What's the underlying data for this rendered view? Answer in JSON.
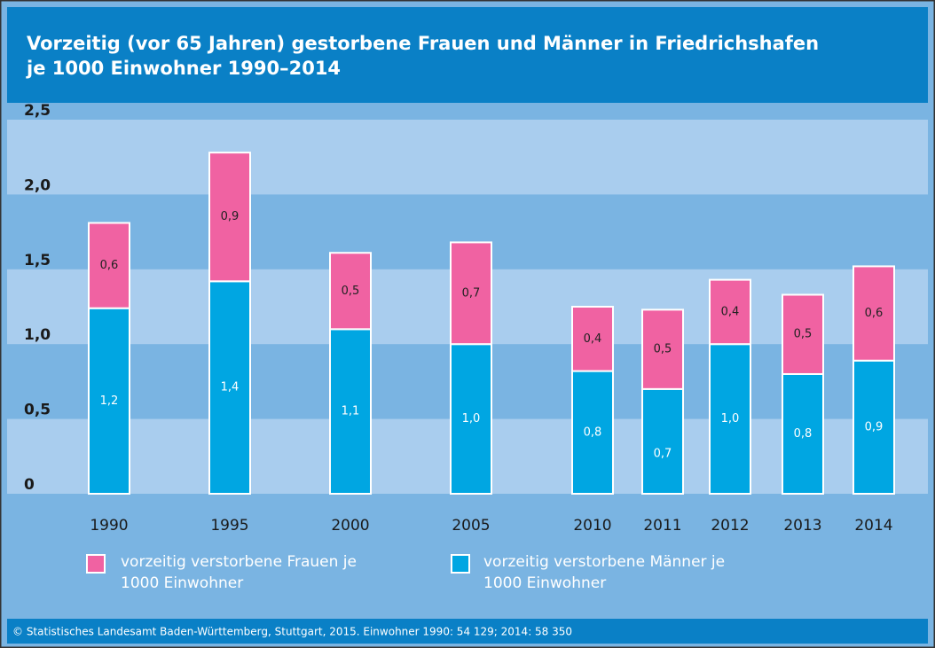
{
  "chart_data": {
    "type": "stacked_bar",
    "title": [
      "Vorzeitig (vor 65 Jahren) gestorbene Frauen und Männer in Friedrichshafen",
      "je 1000 Einwohner 1990–2014"
    ],
    "categories": [
      "1990",
      "1995",
      "2000",
      "2005",
      "2010",
      "2011",
      "2012",
      "2013",
      "2014"
    ],
    "series": [
      {
        "name": "vorzeitig verstorbene Frauen je 1000 Einwohner",
        "color": "#f062a2",
        "values": [
          0.57,
          0.86,
          0.51,
          0.68,
          0.43,
          0.53,
          0.43,
          0.53,
          0.63
        ],
        "value_labels": [
          "0,6",
          "0,9",
          "0,5",
          "0,7",
          "0,4",
          "0,5",
          "0,4",
          "0,5",
          "0,6"
        ]
      },
      {
        "name": "vorzeitig verstorbene Männer je 1000 Einwohner",
        "color": "#00a6e2",
        "values": [
          1.24,
          1.42,
          1.1,
          1.0,
          0.82,
          0.7,
          1.0,
          0.8,
          0.89
        ],
        "value_labels": [
          "1,2",
          "1,4",
          "1,1",
          "1,0",
          "0,8",
          "0,7",
          "1,0",
          "0,8",
          "0,9"
        ]
      }
    ],
    "ylim": [
      0,
      2.5
    ],
    "yticks": [
      0,
      {
        "value": 0.5,
        "label": "0,5"
      },
      {
        "value": 1,
        "label": "1,0"
      },
      {
        "value": 1.5,
        "label": "1,5"
      },
      {
        "value": 2,
        "label": "2,0"
      },
      {
        "value": 2.5,
        "label": "2,5"
      }
    ],
    "grid": true,
    "source": "© Statistisches Landesamt Baden-Württemberg, Stuttgart, 2015. Einwohner 1990: 54 129; 2014: 58 350"
  }
}
